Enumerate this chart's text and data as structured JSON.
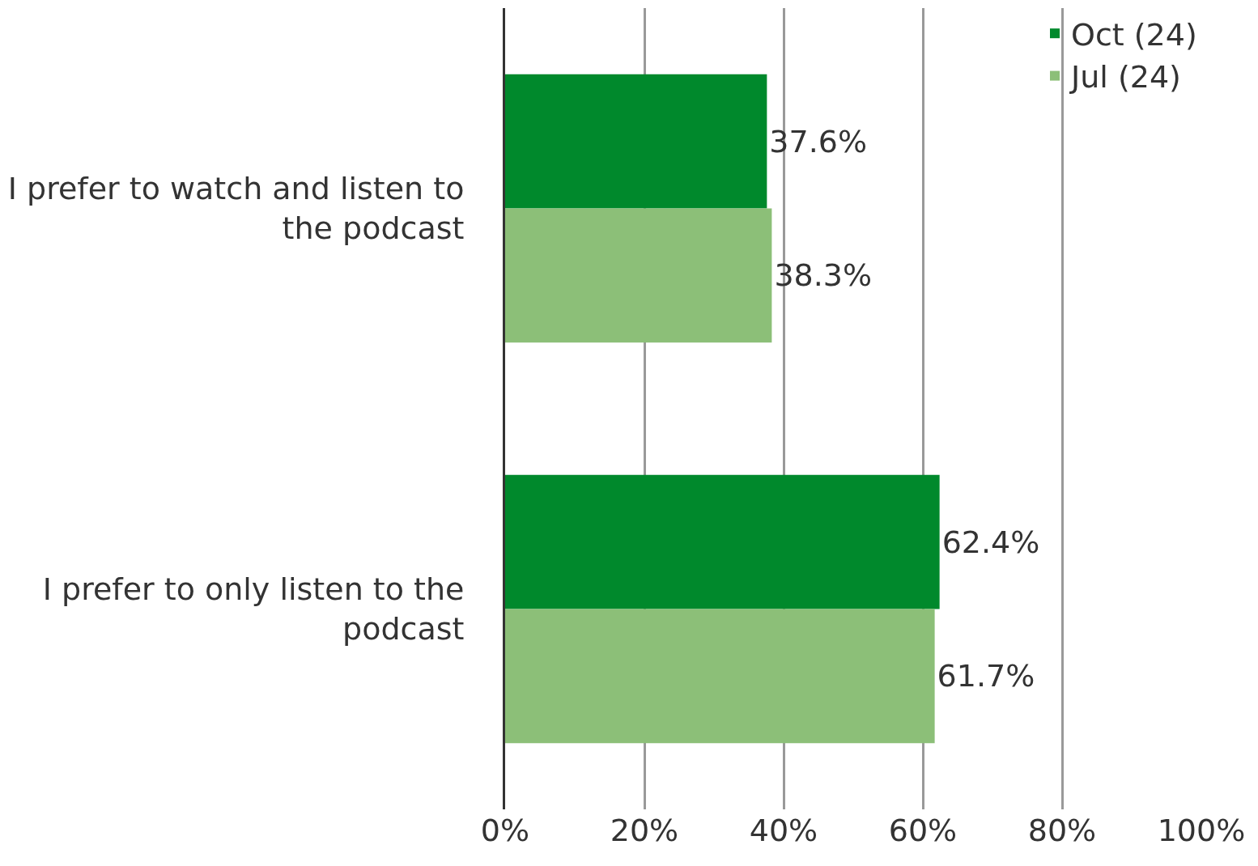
{
  "chart_data": {
    "type": "bar",
    "orientation": "horizontal",
    "categories": [
      "I prefer to watch and listen to the podcast",
      "I prefer to only listen to the podcast"
    ],
    "series": [
      {
        "name": "Oct (24)",
        "color": "#00892c",
        "values": [
          37.6,
          62.4
        ],
        "value_labels": [
          "37.6%",
          "62.4%"
        ]
      },
      {
        "name": "Jul (24)",
        "color": "#8cbf78",
        "values": [
          38.3,
          61.7
        ],
        "value_labels": [
          "38.3%",
          "61.7%"
        ]
      }
    ],
    "xlim": [
      0,
      100
    ],
    "xticks": [
      {
        "value": 0,
        "label": "0%"
      },
      {
        "value": 20,
        "label": "20%"
      },
      {
        "value": 40,
        "label": "40%"
      },
      {
        "value": 60,
        "label": "60%"
      },
      {
        "value": 80,
        "label": "80%"
      },
      {
        "value": 100,
        "label": "100%"
      }
    ],
    "grid": "x",
    "legend": "top right"
  }
}
